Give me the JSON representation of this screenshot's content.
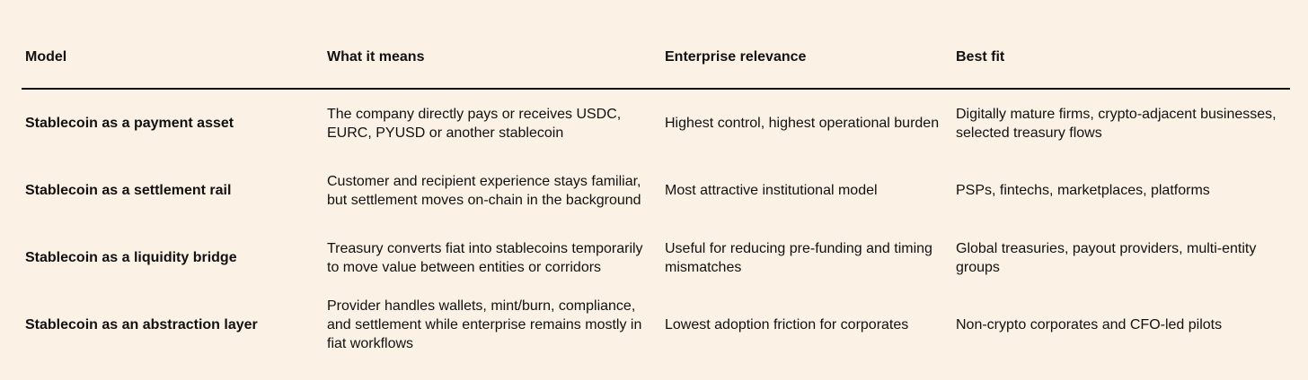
{
  "table": {
    "header": [
      "Model",
      "What it means",
      "Enterprise relevance",
      "Best fit"
    ],
    "rows": [
      [
        "Stablecoin as a payment asset",
        "The company directly pays or receives USDC, EURC, PYUSD or another stablecoin",
        "Highest control, highest operational burden",
        "Digitally mature firms, crypto-adjacent businesses, selected treasury flows"
      ],
      [
        "Stablecoin as a settlement rail",
        "Customer and recipient experience stays familiar, but settlement moves on-chain in the background",
        "Most attractive institutional model",
        "PSPs, fintechs, marketplaces, platforms"
      ],
      [
        "Stablecoin as a liquidity bridge",
        "Treasury converts fiat into stablecoins temporarily to move value between entities or corridors",
        "Useful for reducing pre-funding and timing mismatches",
        "Global treasuries, payout providers, multi-entity groups"
      ],
      [
        "Stablecoin as an abstraction layer",
        "Provider handles wallets, mint/burn, compliance, and settlement while enterprise remains mostly in fiat workflows",
        "Lowest adoption friction for corporates",
        "Non-crypto corporates and CFO-led pilots"
      ]
    ]
  }
}
